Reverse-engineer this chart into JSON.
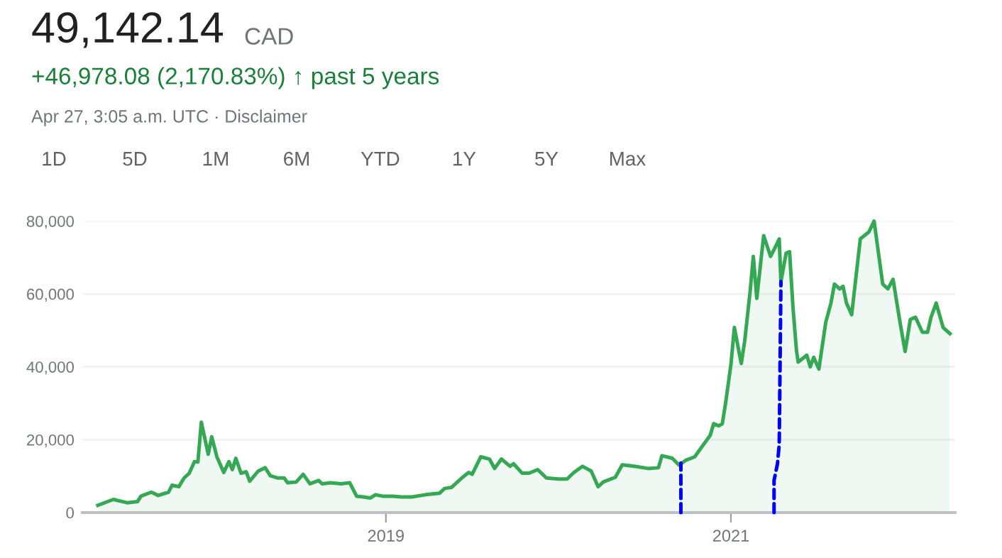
{
  "chart_data": {
    "type": "area",
    "title": "49,142.14",
    "annotations": [
      "CAD",
      "+46,978.08 (2,170.83%) ↑ past 5 years",
      "Apr 27, 3:05 a.m. UTC · Disclaimer",
      "1D",
      "5D",
      "1M",
      "6M",
      "YTD",
      "1Y",
      "5Y",
      "Max"
    ],
    "xlim": [
      2017.24,
      2022.3
    ],
    "xticks": [
      2019,
      2021
    ],
    "ylim": [
      0,
      80000
    ],
    "yticks": [
      0,
      {
        "value": 20000,
        "label": "20,000"
      },
      {
        "value": 40000,
        "label": "40,000"
      },
      {
        "value": 60000,
        "label": "60,000"
      },
      {
        "value": 80000,
        "label": "80,000"
      }
    ],
    "grid": "y",
    "legend": false,
    "marker": "none",
    "series": [
      {
        "color": "#34a853",
        "line_style": "solid",
        "x": [
          2017.33,
          2017.42,
          2017.5,
          2017.56,
          2017.58,
          2017.64,
          2017.68,
          2017.74,
          2017.76,
          2017.8,
          2017.83,
          2017.86,
          2017.89,
          2017.91,
          2017.93,
          2017.97,
          2017.99,
          2018.02,
          2018.06,
          2018.09,
          2018.11,
          2018.13,
          2018.16,
          2018.19,
          2018.21,
          2018.26,
          2018.3,
          2018.33,
          2018.37,
          2018.41,
          2018.43,
          2018.48,
          2018.52,
          2018.56,
          2018.61,
          2018.63,
          2018.68,
          2018.74,
          2018.79,
          2018.83,
          2018.87,
          2018.91,
          2018.94,
          2018.98,
          2019.04,
          2019.09,
          2019.15,
          2019.23,
          2019.31,
          2019.34,
          2019.38,
          2019.44,
          2019.48,
          2019.5,
          2019.55,
          2019.6,
          2019.63,
          2019.67,
          2019.72,
          2019.74,
          2019.79,
          2019.83,
          2019.88,
          2019.93,
          2020.0,
          2020.05,
          2020.09,
          2020.14,
          2020.19,
          2020.23,
          2020.26,
          2020.33,
          2020.37,
          2020.44,
          2020.52,
          2020.58,
          2020.6,
          2020.66,
          2020.7,
          2020.74,
          2020.79,
          2020.84,
          2020.88,
          2020.9,
          2020.93,
          2020.95,
          2020.97,
          2021.0,
          2021.02,
          2021.06,
          2021.08,
          2021.11,
          2021.13,
          2021.15,
          2021.18,
          2021.19,
          2021.23,
          2021.26,
          2021.28,
          2021.29,
          2021.32,
          2021.34,
          2021.36,
          2021.38,
          2021.39,
          2021.44,
          2021.46,
          2021.48,
          2021.51,
          2021.55,
          2021.58,
          2021.6,
          2021.63,
          2021.65,
          2021.67,
          2021.7,
          2021.75,
          2021.8,
          2021.83,
          2021.88,
          2021.91,
          2021.94,
          2021.98,
          2022.01,
          2022.04,
          2022.07,
          2022.11,
          2022.14,
          2022.16,
          2022.19,
          2022.23,
          2022.27
        ],
        "values": [
          2000,
          3600,
          2700,
          3000,
          4500,
          5600,
          4700,
          5600,
          7500,
          7100,
          9500,
          10800,
          14000,
          13900,
          24800,
          16000,
          20800,
          15300,
          11000,
          14000,
          11800,
          14900,
          10800,
          11200,
          8600,
          11400,
          12300,
          10100,
          9500,
          9500,
          8200,
          8400,
          10500,
          7900,
          8800,
          7900,
          8200,
          7900,
          8200,
          4500,
          4300,
          4000,
          4900,
          4500,
          4500,
          4300,
          4300,
          4900,
          5300,
          6600,
          6900,
          9500,
          11000,
          10500,
          15300,
          14700,
          12100,
          14700,
          12700,
          13400,
          10800,
          10800,
          11800,
          9500,
          9200,
          9200,
          11000,
          12700,
          11400,
          7100,
          8400,
          9700,
          13100,
          12700,
          12100,
          12300,
          15600,
          14900,
          13000,
          14400,
          15300,
          18600,
          21200,
          24400,
          23800,
          24400,
          30300,
          40600,
          50800,
          40900,
          47100,
          60100,
          70300,
          58800,
          71800,
          76000,
          70300,
          73100,
          75100,
          63400,
          71200,
          71600,
          56200,
          44500,
          41300,
          43200,
          40000,
          42600,
          39400,
          52300,
          57500,
          62700,
          61400,
          62100,
          57500,
          54300,
          75100,
          77000,
          80000,
          62700,
          61400,
          64000,
          52300,
          44200,
          53000,
          53600,
          49500,
          49500,
          53600,
          57500,
          50800,
          49100
        ]
      },
      {
        "type": "line",
        "color": "#0000ff",
        "line_style": "dashed",
        "x": [
          2020.71,
          2020.71
        ],
        "values": [
          0,
          13600
        ]
      },
      {
        "type": "line",
        "color": "#0000ff",
        "line_style": "dashed",
        "x": [
          2021.25,
          2021.25,
          2021.27,
          2021.28,
          2021.29
        ],
        "values": [
          0,
          8800,
          13400,
          18600,
          63400
        ]
      }
    ]
  }
}
